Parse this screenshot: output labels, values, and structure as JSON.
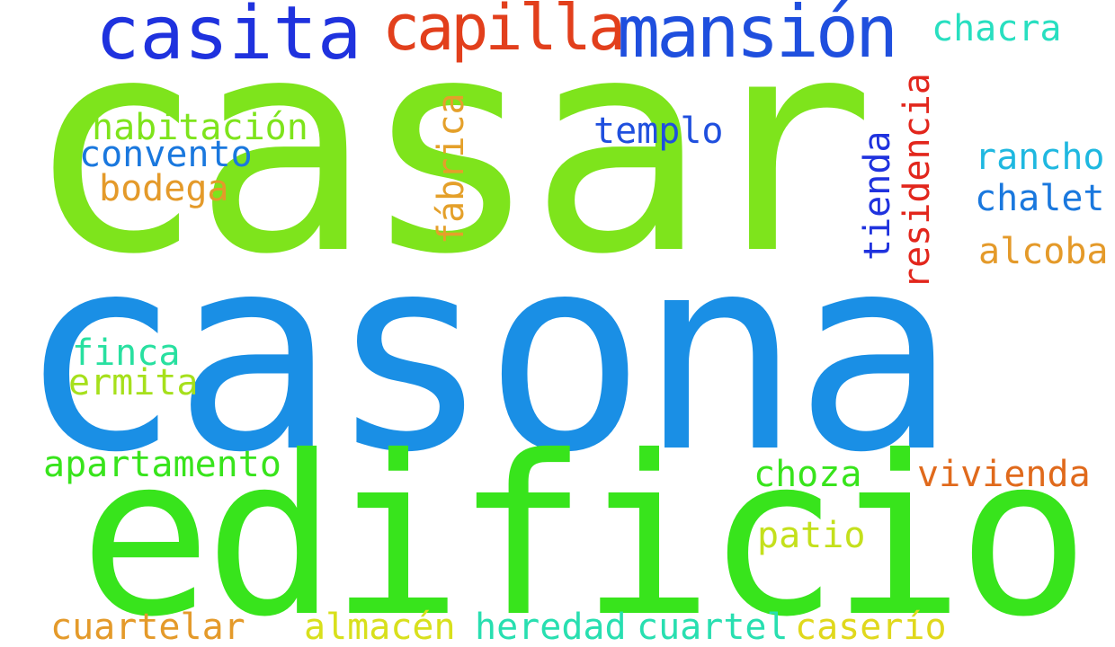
{
  "words": {
    "casar": {
      "text": "casar",
      "color": "#7ee41c"
    },
    "casona": {
      "text": "casona",
      "color": "#1a8fe5"
    },
    "edificio": {
      "text": "edificio",
      "color": "#38e41c"
    },
    "casita": {
      "text": "casita",
      "color": "#1f32de"
    },
    "capilla": {
      "text": "capilla",
      "color": "#e23f1c"
    },
    "mansion": {
      "text": "mansión",
      "color": "#1f4fde"
    },
    "chacra": {
      "text": "chacra",
      "color": "#28dfc0"
    },
    "habitacion": {
      "text": "habitación",
      "color": "#7ee41c"
    },
    "convento": {
      "text": "convento",
      "color": "#1a78de"
    },
    "bodega": {
      "text": "bodega",
      "color": "#e49a2a"
    },
    "fabrica": {
      "text": "fábrica",
      "color": "#e4a02a"
    },
    "templo": {
      "text": "templo",
      "color": "#1f4fde"
    },
    "tienda": {
      "text": "tienda",
      "color": "#1f32de"
    },
    "residencia": {
      "text": "residencia",
      "color": "#e2261c"
    },
    "rancho": {
      "text": "rancho",
      "color": "#1fb8e0"
    },
    "chalet": {
      "text": "chalet",
      "color": "#1a78de"
    },
    "alcoba": {
      "text": "alcoba",
      "color": "#e49a2a"
    },
    "finca": {
      "text": "finca",
      "color": "#28e0a0"
    },
    "ermita": {
      "text": "ermita",
      "color": "#a6e01c"
    },
    "apartamento": {
      "text": "apartamento",
      "color": "#38e41c"
    },
    "choza": {
      "text": "choza",
      "color": "#38e41c"
    },
    "vivienda": {
      "text": "vivienda",
      "color": "#e06a1c"
    },
    "patio": {
      "text": "patio",
      "color": "#c4e01c"
    },
    "cuartelar": {
      "text": "cuartelar",
      "color": "#e49a2a"
    },
    "almacen": {
      "text": "almacén",
      "color": "#d8e01c"
    },
    "heredad": {
      "text": "heredad",
      "color": "#28dfb0"
    },
    "cuartel": {
      "text": "cuartel",
      "color": "#28dfb0"
    },
    "caserio": {
      "text": "caserío",
      "color": "#e0d81c"
    }
  }
}
